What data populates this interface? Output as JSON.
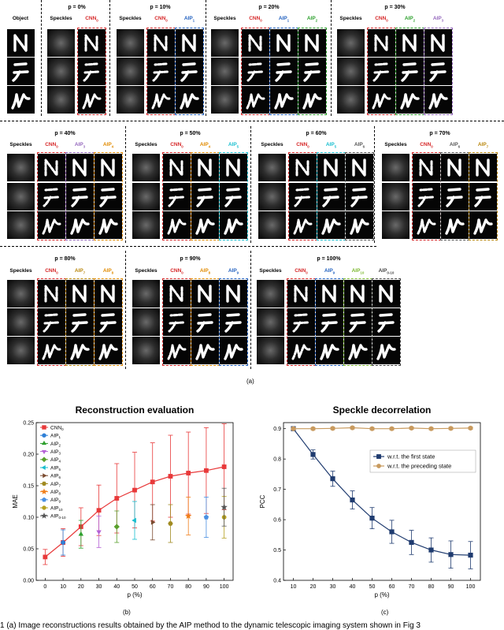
{
  "figure_a": {
    "object_label": "Object",
    "speckles_label": "Speckles",
    "panel_label": "(a)",
    "panels": [
      {
        "title": "p = 0%",
        "cols": [
          {
            "base": "CNN",
            "sub": "0",
            "color": "#d62728"
          }
        ]
      },
      {
        "title": "p = 10%",
        "cols": [
          {
            "base": "CNN",
            "sub": "0",
            "color": "#d62728"
          },
          {
            "base": "AIP",
            "sub": "1",
            "color": "#1f5fbf"
          }
        ]
      },
      {
        "title": "p = 20%",
        "cols": [
          {
            "base": "CNN",
            "sub": "0",
            "color": "#d62728"
          },
          {
            "base": "AIP",
            "sub": "1",
            "color": "#1f5fbf"
          },
          {
            "base": "AIP",
            "sub": "2",
            "color": "#2ca02c"
          }
        ]
      },
      {
        "title": "p = 30%",
        "cols": [
          {
            "base": "CNN",
            "sub": "0",
            "color": "#d62728"
          },
          {
            "base": "AIP",
            "sub": "2",
            "color": "#2ca02c"
          },
          {
            "base": "AIP",
            "sub": "3",
            "color": "#9467bd"
          }
        ]
      },
      {
        "title": "p = 40%",
        "cols": [
          {
            "base": "CNN",
            "sub": "0",
            "color": "#d62728"
          },
          {
            "base": "AIP",
            "sub": "3",
            "color": "#9467bd"
          },
          {
            "base": "AIP",
            "sub": "4",
            "color": "#e08a00"
          }
        ]
      },
      {
        "title": "p = 50%",
        "cols": [
          {
            "base": "CNN",
            "sub": "0",
            "color": "#d62728"
          },
          {
            "base": "AIP",
            "sub": "4",
            "color": "#e08a00"
          },
          {
            "base": "AIP",
            "sub": "5",
            "color": "#17becf"
          }
        ]
      },
      {
        "title": "p = 60%",
        "cols": [
          {
            "base": "CNN",
            "sub": "0",
            "color": "#d62728"
          },
          {
            "base": "AIP",
            "sub": "5",
            "color": "#17becf"
          },
          {
            "base": "AIP",
            "sub": "6",
            "color": "#555555"
          }
        ]
      },
      {
        "title": "p = 70%",
        "cols": [
          {
            "base": "CNN",
            "sub": "0",
            "color": "#d62728"
          },
          {
            "base": "AIP",
            "sub": "6",
            "color": "#555555"
          },
          {
            "base": "AIP",
            "sub": "7",
            "color": "#b8860b"
          }
        ]
      },
      {
        "title": "p = 80%",
        "cols": [
          {
            "base": "CNN",
            "sub": "0",
            "color": "#d62728"
          },
          {
            "base": "AIP",
            "sub": "7",
            "color": "#b8860b"
          },
          {
            "base": "AIP",
            "sub": "8",
            "color": "#e08a00"
          }
        ]
      },
      {
        "title": "p = 90%",
        "cols": [
          {
            "base": "CNN",
            "sub": "0",
            "color": "#d62728"
          },
          {
            "base": "AIP",
            "sub": "8",
            "color": "#e08a00"
          },
          {
            "base": "AIP",
            "sub": "9",
            "color": "#1f5fbf"
          }
        ]
      },
      {
        "title": "p = 100%",
        "cols": [
          {
            "base": "CNN",
            "sub": "0",
            "color": "#d62728"
          },
          {
            "base": "AIP",
            "sub": "9",
            "color": "#1f5fbf"
          },
          {
            "base": "AIP",
            "sub": "10",
            "color": "#7cb82f"
          },
          {
            "base": "AIP",
            "sub": "0-10",
            "color": "#444444"
          }
        ]
      }
    ]
  },
  "chart_b": {
    "panel_label": "(b)",
    "chart_data": {
      "type": "line",
      "title": "Reconstruction evaluation",
      "xlabel": "p (%)",
      "ylabel": "MAE",
      "xlim": [
        -5,
        105
      ],
      "ylim": [
        0,
        0.25
      ],
      "xticks": [
        0,
        10,
        20,
        30,
        40,
        50,
        60,
        70,
        80,
        90,
        100
      ],
      "yticks": [
        0.0,
        0.05,
        0.1,
        0.15,
        0.2,
        0.25
      ],
      "ytick_labels": [
        "0.00",
        "0.05",
        "0.10",
        "0.15",
        "0.20",
        "0.25"
      ],
      "legend_position": "top-left",
      "series": [
        {
          "name": "CNN",
          "sub": "0",
          "color": "#e8393a",
          "marker": "square",
          "x": [
            0,
            10,
            20,
            30,
            40,
            50,
            60,
            70,
            80,
            90,
            100
          ],
          "y": [
            0.037,
            0.06,
            0.085,
            0.111,
            0.13,
            0.143,
            0.156,
            0.165,
            0.17,
            0.174,
            0.18
          ],
          "err": [
            0.012,
            0.022,
            0.03,
            0.04,
            0.055,
            0.06,
            0.062,
            0.065,
            0.065,
            0.068,
            0.068
          ]
        },
        {
          "name": "AIP",
          "sub": "1",
          "color": "#2f7fd6",
          "marker": "circle",
          "x": [
            10
          ],
          "y": [
            0.06
          ],
          "err": [
            0.02
          ]
        },
        {
          "name": "AIP",
          "sub": "2",
          "color": "#2ca02c",
          "marker": "triangle-up",
          "x": [
            20
          ],
          "y": [
            0.073
          ],
          "err": [
            0.022
          ]
        },
        {
          "name": "AIP",
          "sub": "3",
          "color": "#b562d6",
          "marker": "triangle-down",
          "x": [
            30
          ],
          "y": [
            0.077
          ],
          "err": [
            0.025
          ]
        },
        {
          "name": "AIP",
          "sub": "4",
          "color": "#5aa02c",
          "marker": "diamond",
          "x": [
            40
          ],
          "y": [
            0.085
          ],
          "err": [
            0.025
          ]
        },
        {
          "name": "AIP",
          "sub": "5",
          "color": "#17becf",
          "marker": "triangle-left",
          "x": [
            50
          ],
          "y": [
            0.095
          ],
          "err": [
            0.03
          ]
        },
        {
          "name": "AIP",
          "sub": "6",
          "color": "#7a4a2e",
          "marker": "triangle-right",
          "x": [
            60
          ],
          "y": [
            0.092
          ],
          "err": [
            0.028
          ]
        },
        {
          "name": "AIP",
          "sub": "7",
          "color": "#a08a20",
          "marker": "hexagon",
          "x": [
            70
          ],
          "y": [
            0.09
          ],
          "err": [
            0.03
          ]
        },
        {
          "name": "AIP",
          "sub": "8",
          "color": "#f07f1a",
          "marker": "star",
          "x": [
            80
          ],
          "y": [
            0.102
          ],
          "err": [
            0.03
          ]
        },
        {
          "name": "AIP",
          "sub": "9",
          "color": "#4a90e2",
          "marker": "pentagon",
          "x": [
            90
          ],
          "y": [
            0.1
          ],
          "err": [
            0.032
          ]
        },
        {
          "name": "AIP",
          "sub": "10",
          "color": "#b5a020",
          "marker": "circle",
          "x": [
            100
          ],
          "y": [
            0.1
          ],
          "err": [
            0.033
          ]
        },
        {
          "name": "AIP",
          "sub": "0-10",
          "color": "#555555",
          "marker": "star",
          "x": [
            100
          ],
          "y": [
            0.116
          ],
          "err": [
            0.03
          ]
        }
      ]
    }
  },
  "chart_c": {
    "panel_label": "(c)",
    "chart_data": {
      "type": "line",
      "title": "Speckle decorrelation",
      "xlabel": "p (%)",
      "ylabel": "PCC",
      "xlim": [
        5,
        105
      ],
      "ylim": [
        0.4,
        0.92
      ],
      "xticks": [
        10,
        20,
        30,
        40,
        50,
        60,
        70,
        80,
        90,
        100
      ],
      "yticks": [
        0.4,
        0.5,
        0.6,
        0.7,
        0.8,
        0.9
      ],
      "ytick_labels": [
        "0.4",
        "0.5",
        "0.6",
        "0.7",
        "0.8",
        "0.9"
      ],
      "legend_position": "right",
      "series": [
        {
          "name": "w.r.t. the first state",
          "color": "#1f3b6f",
          "marker": "square",
          "x": [
            10,
            20,
            30,
            40,
            50,
            60,
            70,
            80,
            90,
            100
          ],
          "y": [
            0.9,
            0.815,
            0.735,
            0.665,
            0.605,
            0.56,
            0.525,
            0.5,
            0.485,
            0.483
          ],
          "err": [
            0,
            0.015,
            0.025,
            0.03,
            0.035,
            0.038,
            0.04,
            0.04,
            0.045,
            0.045
          ]
        },
        {
          "name": "w.r.t. the preceding state",
          "color": "#c89a5e",
          "marker": "circle",
          "x": [
            10,
            20,
            30,
            40,
            50,
            60,
            70,
            80,
            90,
            100
          ],
          "y": [
            0.9,
            0.9,
            0.901,
            0.903,
            0.9,
            0.9,
            0.902,
            0.9,
            0.901,
            0.902
          ],
          "err": [
            0.004,
            0.004,
            0.004,
            0.004,
            0.004,
            0.004,
            0.004,
            0.004,
            0.004,
            0.004
          ]
        }
      ]
    }
  },
  "caption": "1 (a) Image reconstructions results obtained by the AIP method to the dynamic telescopic imaging system shown in Fig 3"
}
